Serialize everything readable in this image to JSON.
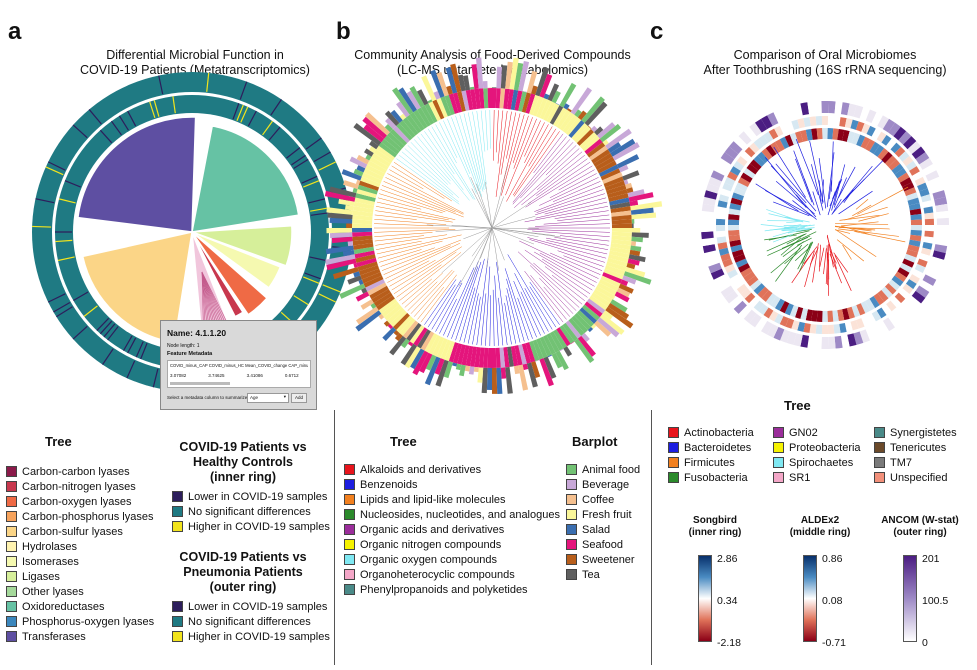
{
  "panels": {
    "a": {
      "letter": "a",
      "title_line1": "Differential Microbial Function in",
      "title_line2": "COVID-19 Patients (Metatranscriptomics)"
    },
    "b": {
      "letter": "b",
      "title_line1": "Community Analysis of Food-Derived  Compounds",
      "title_line2": "(LC-MS untargeted metabolomics)"
    },
    "c": {
      "letter": "c",
      "title_line1": "Comparison of Oral Microbiomes",
      "title_line2": "After Toothbrushing (16S rRNA sequencing)"
    }
  },
  "popup": {
    "name": "Name: 4.1.1.20",
    "node_length": "Node length: 1",
    "feature_metadata": "Feature Metadata",
    "columns": "COVID_minus_CAP  COVID_minus_HC  Mean_COVID_change  CAP_minus_HC  lo",
    "values": [
      "3.07082",
      "3.74625",
      "3.41086",
      "0.6712"
    ],
    "select_label": "Select a metadata column to summarize",
    "select_value": "Age",
    "add_button": "Add"
  },
  "legend_a": {
    "tree_title": "Tree",
    "tree_items": [
      {
        "label": "Carbon-carbon lyases",
        "color": "#8b1a4a"
      },
      {
        "label": "Carbon-nitrogen lyases",
        "color": "#c8384e"
      },
      {
        "label": "Carbon-oxygen lyases",
        "color": "#ef6a45"
      },
      {
        "label": "Carbon-phosphorus lyases",
        "color": "#f7a35c"
      },
      {
        "label": "Carbon-sulfur lyases",
        "color": "#fbd587"
      },
      {
        "label": "Hydrolases",
        "color": "#fff3b0"
      },
      {
        "label": "Isomerases",
        "color": "#f5f9b0"
      },
      {
        "label": "Ligases",
        "color": "#d6ef9a"
      },
      {
        "label": "Other lyases",
        "color": "#a5d99b"
      },
      {
        "label": "Oxidoreductases",
        "color": "#66c2a4"
      },
      {
        "label": "Phosphorus-oxygen lyases",
        "color": "#3b87bd"
      },
      {
        "label": "Transferases",
        "color": "#5e4fa2"
      }
    ],
    "inner_title_l1": "COVID-19 Patients vs",
    "inner_title_l2": "Healthy Controls",
    "inner_title_l3": "(inner ring)",
    "inner_items": [
      {
        "label": "Lower in  COVID-19 samples",
        "color": "#2d1e5c"
      },
      {
        "label": "No significant differences",
        "color": "#1f7a83"
      },
      {
        "label": "Higher in COVID-19 samples",
        "color": "#f2e41d"
      }
    ],
    "outer_title_l1": "COVID-19 Patients vs",
    "outer_title_l2": "Pneumonia Patients",
    "outer_title_l3": "(outer ring)",
    "outer_items": [
      {
        "label": "Lower in  COVID-19 samples",
        "color": "#2d1e5c"
      },
      {
        "label": "No significant differences",
        "color": "#1f7a83"
      },
      {
        "label": "Higher in COVID-19 samples",
        "color": "#f2e41d"
      }
    ]
  },
  "legend_b": {
    "tree_title": "Tree",
    "tree_items": [
      {
        "label": "Alkaloids and derivatives",
        "color": "#e8141c"
      },
      {
        "label": "Benzenoids",
        "color": "#1d1ee0"
      },
      {
        "label": "Lipids and lipid-like molecules",
        "color": "#f2801f"
      },
      {
        "label": "Nucleosides, nucleotides, and analogues",
        "color": "#2b8a2b"
      },
      {
        "label": "Organic acids and derivatives",
        "color": "#9b2d9b"
      },
      {
        "label": "Organic nitrogen compounds",
        "color": "#f6f200"
      },
      {
        "label": "Organic oxygen compounds",
        "color": "#7fe8f2"
      },
      {
        "label": "Organoheterocyclic compounds",
        "color": "#f4a7c8"
      },
      {
        "label": "Phenylpropanoids and polyketides",
        "color": "#4a8a88"
      }
    ],
    "barplot_title": "Barplot",
    "barplot_items": [
      {
        "label": "Animal food",
        "color": "#72c274"
      },
      {
        "label": "Beverage",
        "color": "#c8a8d8"
      },
      {
        "label": "Coffee",
        "color": "#f5c08f"
      },
      {
        "label": "Fresh fruit",
        "color": "#fbf79a"
      },
      {
        "label": "Salad",
        "color": "#3a6eb0"
      },
      {
        "label": "Seafood",
        "color": "#e4157c"
      },
      {
        "label": "Sweetener",
        "color": "#b85e1b"
      },
      {
        "label": "Tea",
        "color": "#5f5f5f"
      }
    ]
  },
  "legend_c": {
    "tree_title": "Tree",
    "col1": [
      {
        "label": "Actinobacteria",
        "color": "#e8141c"
      },
      {
        "label": "Bacteroidetes",
        "color": "#1d1ee0"
      },
      {
        "label": "Firmicutes",
        "color": "#f2801f"
      },
      {
        "label": "Fusobacteria",
        "color": "#2b8a2b"
      }
    ],
    "col2": [
      {
        "label": "GN02",
        "color": "#9b2d9b"
      },
      {
        "label": "Proteobacteria",
        "color": "#f6f200"
      },
      {
        "label": "Spirochaetes",
        "color": "#7fe8f2"
      },
      {
        "label": "SR1",
        "color": "#f4a7c8"
      }
    ],
    "col3": [
      {
        "label": "Synergistetes",
        "color": "#4a8a88"
      },
      {
        "label": "Tenericutes",
        "color": "#6b4a2a"
      },
      {
        "label": "TM7",
        "color": "#7a7a7a"
      },
      {
        "label": "Unspecified",
        "color": "#f2907a"
      }
    ],
    "colorbars": [
      {
        "title_l1": "Songbird",
        "title_l2": "(inner ring)",
        "max": "2.86",
        "mid": "0.34",
        "min": "-2.18",
        "scheme": "rdbu"
      },
      {
        "title_l1": "ALDEx2",
        "title_l2": "(middle ring)",
        "max": "0.86",
        "mid": "0.08",
        "min": "-0.71",
        "scheme": "rdbu"
      },
      {
        "title_l1": "ANCOM (W-stat)",
        "title_l2": "(outer ring)",
        "max": "201",
        "mid": "100.5",
        "min": "0",
        "scheme": "purple"
      }
    ]
  },
  "colors": {
    "teal_ring": "#1f7a83",
    "dark_ring": "#2d1e5c",
    "yellow_ring": "#f2e41d"
  }
}
